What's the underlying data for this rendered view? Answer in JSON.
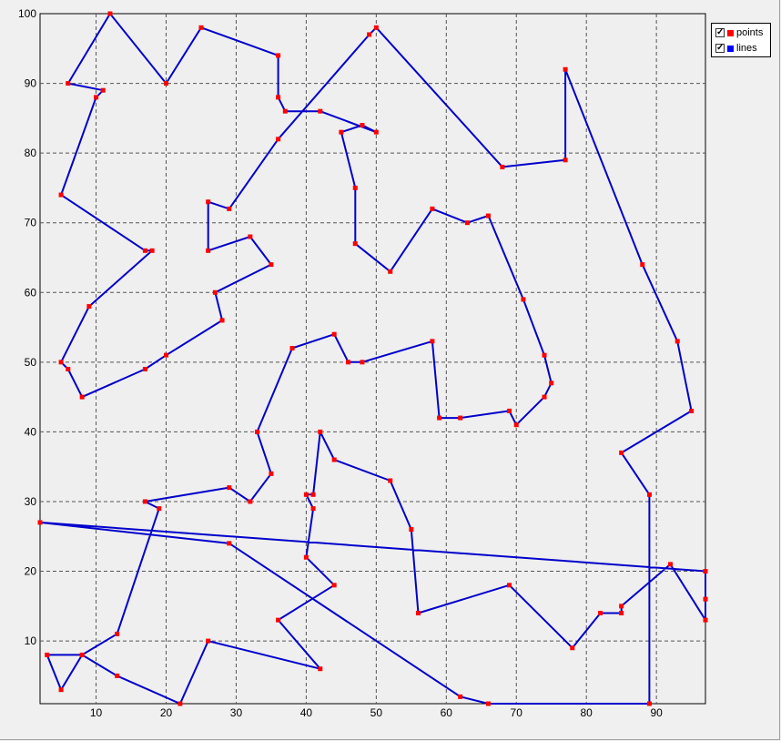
{
  "chart_data": {
    "type": "line",
    "title": "",
    "xlabel": "",
    "ylabel": "",
    "xlim": [
      2,
      97
    ],
    "ylim": [
      1,
      100
    ],
    "x_ticks": [
      10,
      20,
      30,
      40,
      50,
      60,
      70,
      80,
      90
    ],
    "y_ticks": [
      10,
      20,
      30,
      40,
      50,
      60,
      70,
      80,
      90,
      100
    ],
    "grid": true,
    "legend_position": "top-right",
    "series": [
      {
        "name": "lines",
        "color": "#0000cc",
        "points": [
          [
            2,
            27
          ],
          [
            97,
            20
          ],
          [
            97,
            16
          ],
          [
            97,
            13
          ],
          [
            92,
            21
          ],
          [
            85,
            15
          ],
          [
            85,
            14
          ],
          [
            82,
            14
          ],
          [
            78,
            9
          ],
          [
            69,
            18
          ],
          [
            56,
            14
          ],
          [
            55,
            26
          ],
          [
            52,
            33
          ],
          [
            44,
            36
          ],
          [
            42,
            40
          ],
          [
            41,
            31
          ],
          [
            40,
            31
          ],
          [
            41,
            29
          ],
          [
            40,
            22
          ],
          [
            44,
            18
          ],
          [
            36,
            13
          ],
          [
            42,
            6
          ],
          [
            26,
            10
          ],
          [
            22,
            1
          ],
          [
            13,
            5
          ],
          [
            8,
            8
          ],
          [
            5,
            3
          ],
          [
            3,
            8
          ],
          [
            8,
            8
          ],
          [
            13,
            11
          ],
          [
            19,
            29
          ],
          [
            17,
            30
          ],
          [
            29,
            32
          ],
          [
            32,
            30
          ],
          [
            35,
            34
          ],
          [
            33,
            40
          ],
          [
            38,
            52
          ],
          [
            44,
            54
          ],
          [
            46,
            50
          ],
          [
            48,
            50
          ],
          [
            58,
            53
          ],
          [
            59,
            42
          ],
          [
            62,
            42
          ],
          [
            69,
            43
          ],
          [
            70,
            41
          ],
          [
            74,
            45
          ],
          [
            75,
            47
          ],
          [
            74,
            51
          ],
          [
            71,
            59
          ],
          [
            66,
            71
          ],
          [
            63,
            70
          ],
          [
            58,
            72
          ],
          [
            52,
            63
          ],
          [
            47,
            67
          ],
          [
            47,
            75
          ],
          [
            45,
            83
          ],
          [
            48,
            84
          ],
          [
            50,
            83
          ],
          [
            42,
            86
          ],
          [
            37,
            86
          ],
          [
            36,
            88
          ],
          [
            36,
            94
          ],
          [
            25,
            98
          ],
          [
            20,
            90
          ],
          [
            12,
            100
          ],
          [
            6,
            90
          ],
          [
            11,
            89
          ],
          [
            10,
            88
          ],
          [
            5,
            74
          ],
          [
            17,
            66
          ],
          [
            18,
            66
          ],
          [
            9,
            58
          ],
          [
            5,
            50
          ],
          [
            6,
            49
          ],
          [
            8,
            45
          ],
          [
            17,
            49
          ],
          [
            20,
            51
          ],
          [
            28,
            56
          ],
          [
            27,
            60
          ],
          [
            35,
            64
          ],
          [
            32,
            68
          ],
          [
            26,
            66
          ],
          [
            26,
            73
          ],
          [
            29,
            72
          ],
          [
            36,
            82
          ],
          [
            49,
            97
          ],
          [
            50,
            98
          ],
          [
            68,
            78
          ],
          [
            77,
            79
          ],
          [
            77,
            92
          ],
          [
            88,
            64
          ],
          [
            93,
            53
          ],
          [
            95,
            43
          ],
          [
            85,
            37
          ],
          [
            89,
            31
          ],
          [
            89,
            1
          ],
          [
            66,
            1
          ],
          [
            62,
            2
          ],
          [
            29,
            24
          ],
          [
            2,
            27
          ]
        ]
      },
      {
        "name": "points",
        "color": "#ff0000"
      }
    ]
  },
  "legend": {
    "items": [
      {
        "label": "points",
        "color": "#ff0000",
        "checked": true
      },
      {
        "label": "lines",
        "color": "#0000ff",
        "checked": true
      }
    ]
  }
}
